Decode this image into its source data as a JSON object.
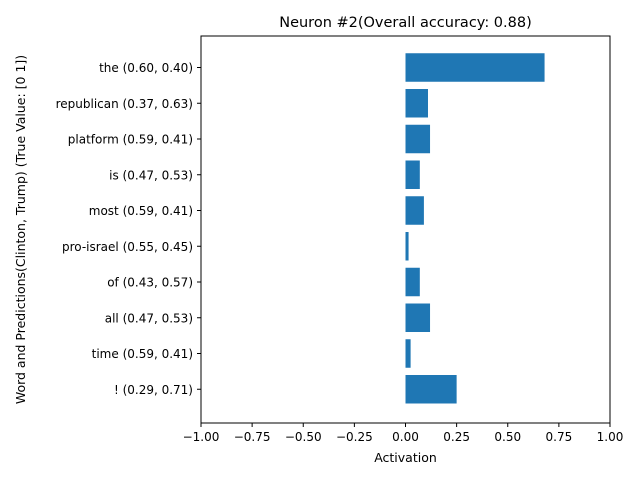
{
  "chart_data": {
    "type": "bar",
    "orientation": "horizontal",
    "title": "Neuron #2(Overall accuracy: 0.88)",
    "xlabel": "Activation",
    "ylabel": "Word and Predictions(Clinton, Trump) (True Value: [0 1])",
    "xlim": [
      -1.0,
      1.0
    ],
    "xticks": [
      "−1.00",
      "−0.75",
      "−0.50",
      "−0.25",
      "0.00",
      "0.25",
      "0.50",
      "0.75",
      "1.00"
    ],
    "categories": [
      "the (0.60, 0.40)",
      "republican (0.37, 0.63)",
      "platform (0.59, 0.41)",
      "is (0.47, 0.53)",
      "most (0.59, 0.41)",
      "pro-israel (0.55, 0.45)",
      "of (0.43, 0.57)",
      "all (0.47, 0.53)",
      "time (0.59, 0.41)",
      "! (0.29, 0.71)"
    ],
    "values": [
      0.68,
      0.11,
      0.12,
      0.07,
      0.09,
      0.015,
      0.07,
      0.12,
      0.025,
      0.25
    ],
    "bar_color": "#1f77b4",
    "grid": false
  }
}
